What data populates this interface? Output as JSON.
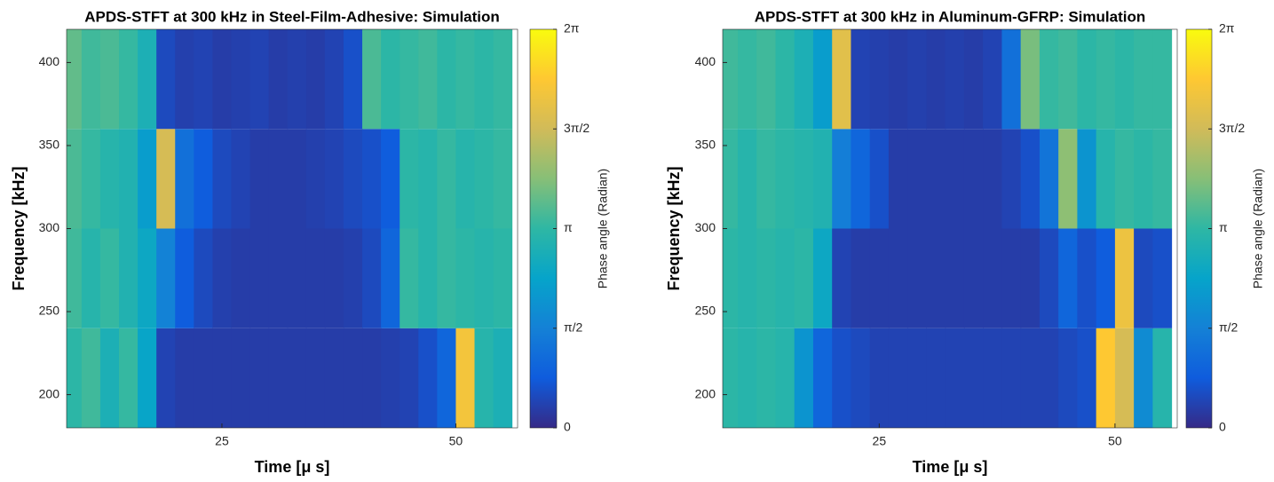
{
  "chart_data": [
    {
      "type": "heatmap",
      "title": "APDS-STFT at 300 kHz in Steel-Film-Adhesive: Simulation",
      "xlabel": "Time [μ s]",
      "ylabel": "Frequency [kHz]",
      "colorbar_label": "Phase angle (Radian)",
      "x": [
        9,
        11,
        13,
        15,
        17,
        19,
        21,
        23,
        25,
        27,
        29,
        31,
        33,
        35,
        37,
        39,
        41,
        43,
        45,
        47,
        49,
        51,
        53,
        55
      ],
      "y": [
        210,
        270,
        330,
        390
      ],
      "values": [
        [
          3.1,
          3.3,
          2.8,
          3.2,
          2.4,
          0.4,
          0.3,
          0.3,
          0.3,
          0.3,
          0.3,
          0.3,
          0.3,
          0.3,
          0.3,
          0.3,
          0.3,
          0.35,
          0.4,
          0.6,
          1.0,
          5.3,
          3.0,
          2.8
        ],
        [
          3.3,
          3.0,
          3.2,
          2.9,
          2.5,
          1.6,
          0.8,
          0.5,
          0.35,
          0.3,
          0.3,
          0.3,
          0.3,
          0.3,
          0.3,
          0.35,
          0.5,
          1.0,
          3.2,
          3.0,
          3.2,
          3.1,
          3.0,
          3.1
        ],
        [
          3.4,
          3.2,
          3.0,
          2.9,
          2.2,
          4.8,
          1.2,
          0.8,
          0.5,
          0.4,
          0.3,
          0.3,
          0.3,
          0.35,
          0.4,
          0.5,
          0.6,
          0.8,
          3.1,
          3.0,
          3.2,
          3.0,
          3.1,
          3.2
        ],
        [
          3.6,
          3.3,
          3.4,
          3.2,
          2.8,
          0.5,
          0.35,
          0.4,
          0.3,
          0.35,
          0.4,
          0.3,
          0.35,
          0.3,
          0.4,
          0.6,
          3.4,
          3.1,
          3.2,
          3.3,
          3.1,
          3.2,
          3.1,
          3.2
        ]
      ],
      "xlim": [
        8.4,
        56.6
      ],
      "ylim": [
        180,
        420
      ],
      "clim": [
        0,
        6.2832
      ],
      "xticks": [
        25,
        50
      ],
      "yticks": [
        200,
        250,
        300,
        350,
        400
      ],
      "cticks": [
        {
          "value": 0,
          "label": "0"
        },
        {
          "value": 1.5708,
          "label": "π/2"
        },
        {
          "value": 3.1416,
          "label": "π"
        },
        {
          "value": 4.7124,
          "label": "3π/2"
        },
        {
          "value": 6.2832,
          "label": "2π"
        }
      ],
      "colormap": [
        "#352a87",
        "#0f5cdd",
        "#1481d6",
        "#06a4ca",
        "#2eb7a4",
        "#87bf77",
        "#d1bb59",
        "#fec832",
        "#f9fb0e"
      ]
    },
    {
      "type": "heatmap",
      "title": "APDS-STFT at 300 kHz in Aluminum-GFRP: Simulation",
      "xlabel": "Time [μ s]",
      "ylabel": "Frequency [kHz]",
      "colorbar_label": "Phase angle (Radian)",
      "x": [
        9,
        11,
        13,
        15,
        17,
        19,
        21,
        23,
        25,
        27,
        29,
        31,
        33,
        35,
        37,
        39,
        41,
        43,
        45,
        47,
        49,
        51,
        53,
        55
      ],
      "y": [
        210,
        270,
        330,
        390
      ],
      "values": [
        [
          3.1,
          3.0,
          3.1,
          3.0,
          2.0,
          1.0,
          0.6,
          0.5,
          0.4,
          0.4,
          0.4,
          0.4,
          0.4,
          0.4,
          0.4,
          0.4,
          0.4,
          0.4,
          0.5,
          0.6,
          5.5,
          4.8,
          1.8,
          3.0
        ],
        [
          3.1,
          3.0,
          3.1,
          3.0,
          3.1,
          2.5,
          0.4,
          0.3,
          0.3,
          0.3,
          0.3,
          0.3,
          0.3,
          0.3,
          0.3,
          0.3,
          0.3,
          0.5,
          1.0,
          0.6,
          0.8,
          5.2,
          0.5,
          0.6
        ],
        [
          3.2,
          3.0,
          3.2,
          3.1,
          3.0,
          2.9,
          1.5,
          1.0,
          0.6,
          0.3,
          0.3,
          0.3,
          0.3,
          0.3,
          0.3,
          0.4,
          0.6,
          1.3,
          4.0,
          2.0,
          3.0,
          3.2,
          3.1,
          3.2
        ],
        [
          3.3,
          3.2,
          3.3,
          3.1,
          2.8,
          2.2,
          5.0,
          0.4,
          0.35,
          0.3,
          0.35,
          0.3,
          0.35,
          0.3,
          0.4,
          1.2,
          3.8,
          3.2,
          3.3,
          3.1,
          3.2,
          3.1,
          3.2,
          3.2
        ]
      ],
      "xlim": [
        8.4,
        56.6
      ],
      "ylim": [
        180,
        420
      ],
      "clim": [
        0,
        6.2832
      ],
      "xticks": [
        25,
        50
      ],
      "yticks": [
        200,
        250,
        300,
        350,
        400
      ],
      "cticks": [
        {
          "value": 0,
          "label": "0"
        },
        {
          "value": 1.5708,
          "label": "π/2"
        },
        {
          "value": 3.1416,
          "label": "π"
        },
        {
          "value": 4.7124,
          "label": "3π/2"
        },
        {
          "value": 6.2832,
          "label": "2π"
        }
      ],
      "colormap": [
        "#352a87",
        "#0f5cdd",
        "#1481d6",
        "#06a4ca",
        "#2eb7a4",
        "#87bf77",
        "#d1bb59",
        "#fec832",
        "#f9fb0e"
      ]
    }
  ]
}
